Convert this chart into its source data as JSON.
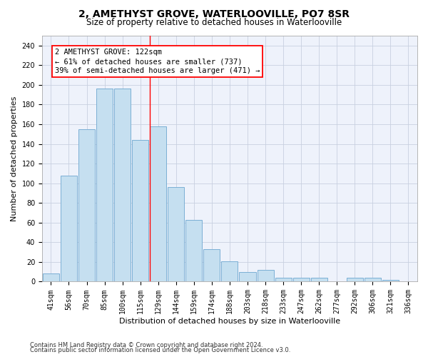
{
  "title": "2, AMETHYST GROVE, WATERLOOVILLE, PO7 8SR",
  "subtitle": "Size of property relative to detached houses in Waterlooville",
  "xlabel": "Distribution of detached houses by size in Waterlooville",
  "ylabel": "Number of detached properties",
  "bar_labels": [
    "41sqm",
    "56sqm",
    "70sqm",
    "85sqm",
    "100sqm",
    "115sqm",
    "129sqm",
    "144sqm",
    "159sqm",
    "174sqm",
    "188sqm",
    "203sqm",
    "218sqm",
    "233sqm",
    "247sqm",
    "262sqm",
    "277sqm",
    "292sqm",
    "306sqm",
    "321sqm",
    "336sqm"
  ],
  "bar_values": [
    8,
    108,
    155,
    196,
    196,
    144,
    158,
    96,
    63,
    33,
    21,
    10,
    12,
    4,
    4,
    4,
    0,
    4,
    4,
    2,
    0
  ],
  "bar_color": "#c5dff0",
  "bar_edge_color": "#7bafd4",
  "annotation_line1": "2 AMETHYST GROVE: 122sqm",
  "annotation_line2": "← 61% of detached houses are smaller (737)",
  "annotation_line3": "39% of semi-detached houses are larger (471) →",
  "vline_x_index": 5.53,
  "ylim": [
    0,
    250
  ],
  "yticks": [
    0,
    20,
    40,
    60,
    80,
    100,
    120,
    140,
    160,
    180,
    200,
    220,
    240
  ],
  "footnote1": "Contains HM Land Registry data © Crown copyright and database right 2024.",
  "footnote2": "Contains public sector information licensed under the Open Government Licence v3.0.",
  "background_color": "#eef2fb",
  "grid_color": "#c8d0e0",
  "title_fontsize": 10,
  "subtitle_fontsize": 8.5,
  "tick_fontsize": 7,
  "ylabel_fontsize": 8,
  "xlabel_fontsize": 8,
  "annot_fontsize": 7.5
}
